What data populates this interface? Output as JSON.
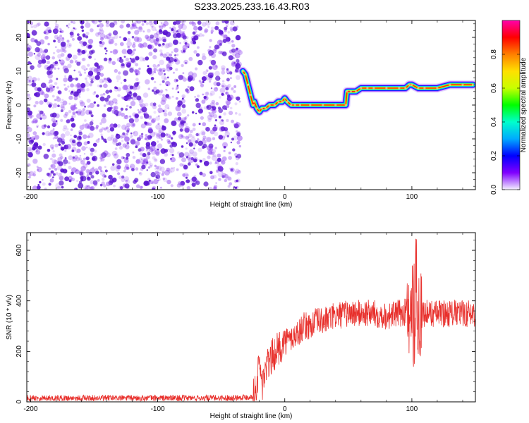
{
  "title": "S233.2025.233.16.43.R03",
  "colors": {
    "noise": "#8a3cf0",
    "noise_dark": "#5a14d2",
    "snr_line": "#e8302c",
    "colorbar_stops": [
      "#f3f0ff",
      "#8000ff",
      "#0000ff",
      "#00aaff",
      "#00ffcc",
      "#00ff00",
      "#c8ff00",
      "#ffe000",
      "#ff7f00",
      "#ff0000",
      "#ff00aa"
    ]
  },
  "chart_data": [
    {
      "type": "heatmap",
      "xlabel": "Height of straight line (km)",
      "ylabel": "Frequency (Hz)",
      "xlim": [
        -203,
        150
      ],
      "ylim": [
        -25,
        25
      ],
      "x_ticks": [
        -200,
        -100,
        0,
        100
      ],
      "y_ticks": [
        -20,
        -10,
        0,
        10,
        20
      ],
      "grid": false,
      "noise_region_x": [
        -203,
        -35
      ],
      "signal_ridge": {
        "x": [
          -33,
          -31,
          -29,
          -27,
          -25,
          -24,
          -22,
          -20,
          -18,
          -15,
          -12,
          -8,
          -5,
          -2,
          0,
          2,
          5,
          8,
          12,
          20,
          30,
          40,
          48,
          49,
          52,
          56,
          60,
          65,
          70,
          80,
          90,
          95,
          98,
          100,
          105,
          110,
          120,
          130,
          140,
          148
        ],
        "freq": [
          10,
          9,
          6,
          3,
          0,
          1,
          -1,
          -2,
          -1,
          -1,
          0,
          0,
          1,
          1,
          2,
          1,
          0,
          0,
          0,
          0,
          0,
          0,
          0,
          4,
          4,
          4,
          5,
          5,
          5,
          5,
          5,
          5,
          6,
          6,
          5,
          5,
          5,
          6,
          6,
          6
        ]
      },
      "colorbar": {
        "label": "Normalized spectral amplitude",
        "range": [
          0,
          1
        ],
        "ticks": [
          "0.0",
          "0.2",
          "0.4",
          "0.6",
          "0.8"
        ]
      }
    },
    {
      "type": "line",
      "xlabel": "Height of straight line (km)",
      "ylabel": "SNR (10 * v/v)",
      "xlim": [
        -203,
        150
      ],
      "ylim": [
        0,
        670
      ],
      "x_ticks": [
        -200,
        -100,
        0,
        100
      ],
      "y_ticks": [
        0,
        200,
        400,
        600
      ],
      "grid": false,
      "series": [
        {
          "x": [
            -203,
            -150,
            -100,
            -50,
            -25,
            -22,
            -20,
            -18,
            -15,
            -10,
            -5,
            0,
            5,
            10,
            15,
            20,
            25,
            30,
            40,
            50,
            60,
            70,
            80,
            90,
            98,
            100,
            102,
            104,
            106,
            110,
            120,
            130,
            140,
            150
          ],
          "y": [
            15,
            15,
            15,
            15,
            20,
            60,
            170,
            60,
            130,
            180,
            210,
            240,
            250,
            270,
            300,
            300,
            320,
            320,
            340,
            350,
            350,
            350,
            340,
            350,
            360,
            400,
            450,
            380,
            360,
            350,
            350,
            350,
            350,
            350
          ]
        }
      ]
    }
  ]
}
